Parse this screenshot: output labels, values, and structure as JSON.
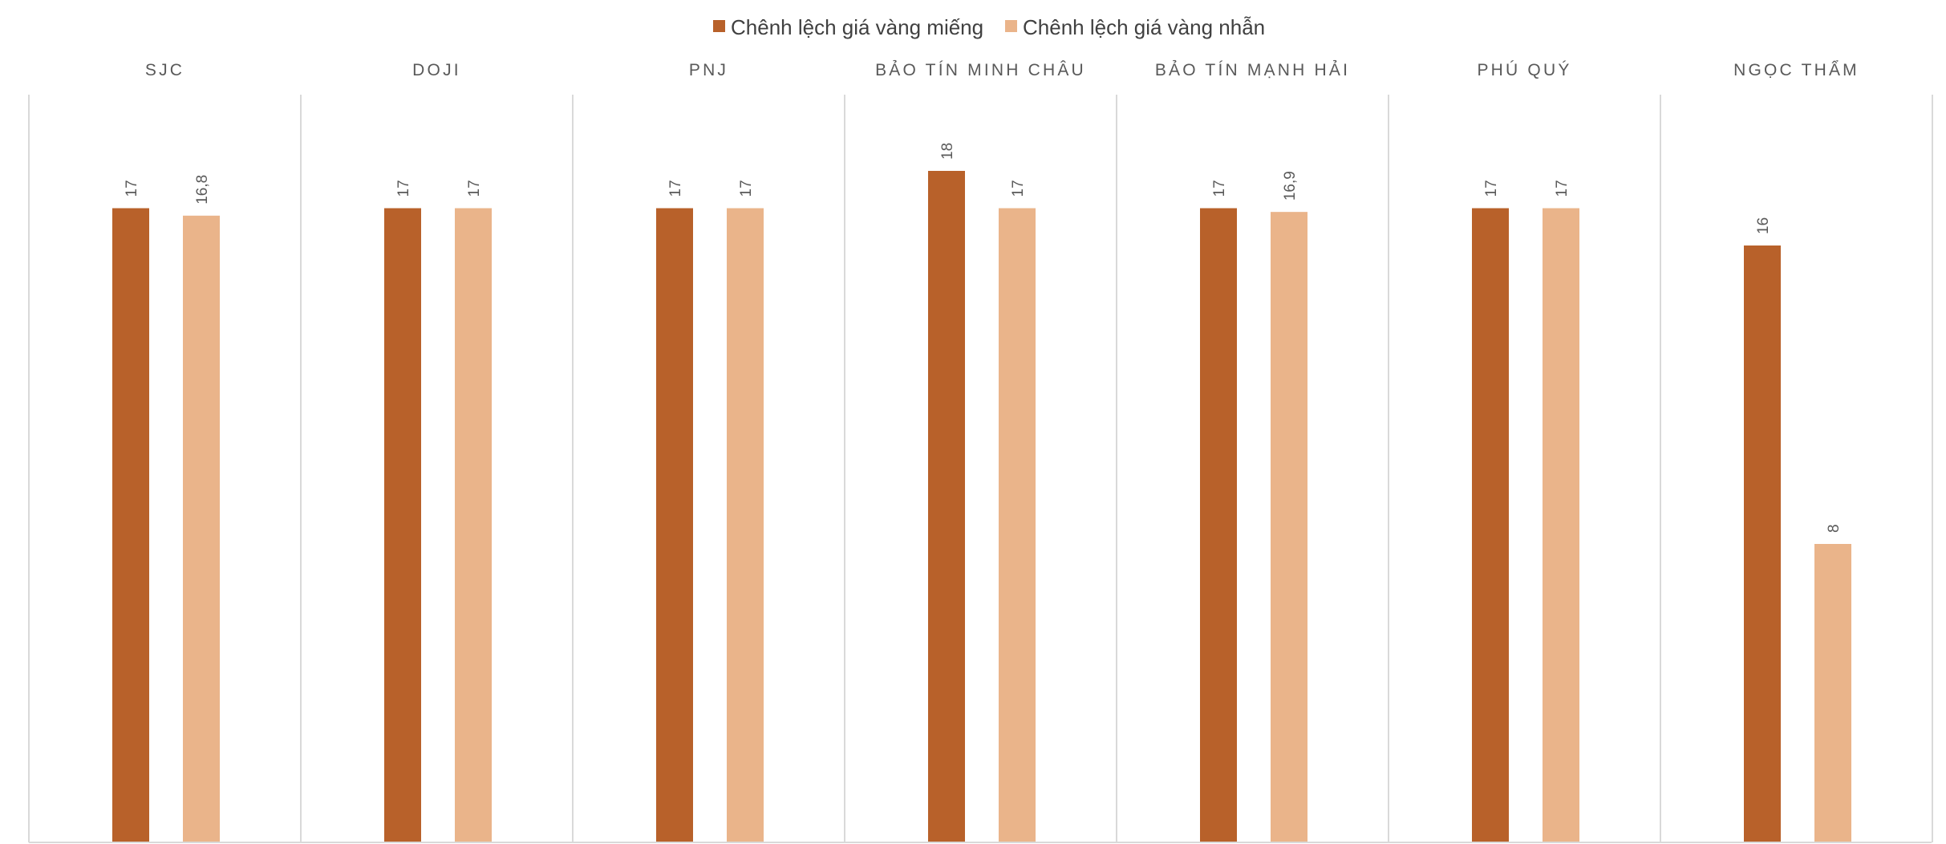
{
  "chart_data": {
    "type": "bar",
    "title": "",
    "categories": [
      "SJC",
      "DOJI",
      "PNJ",
      "BẢO TÍN MINH CHÂU",
      "BẢO TÍN MẠNH HẢI",
      "PHÚ QUÝ",
      "NGỌC THẨM"
    ],
    "series": [
      {
        "name": "Chênh lệch giá vàng miếng",
        "color": "#B8612A",
        "values": [
          17,
          17,
          17,
          18,
          17,
          17,
          16
        ],
        "labels": [
          "17",
          "17",
          "17",
          "18",
          "17",
          "17",
          "16"
        ]
      },
      {
        "name": "Chênh lệch giá vàng nhẫn",
        "color": "#EAB48A",
        "values": [
          16.8,
          17,
          17,
          17,
          16.9,
          17,
          8
        ],
        "labels": [
          "16,8",
          "17",
          "17",
          "17",
          "16,9",
          "17",
          "8"
        ]
      }
    ],
    "ylim": [
      0,
      18
    ],
    "legend": "top-center",
    "grid": false,
    "category_position": "top"
  }
}
